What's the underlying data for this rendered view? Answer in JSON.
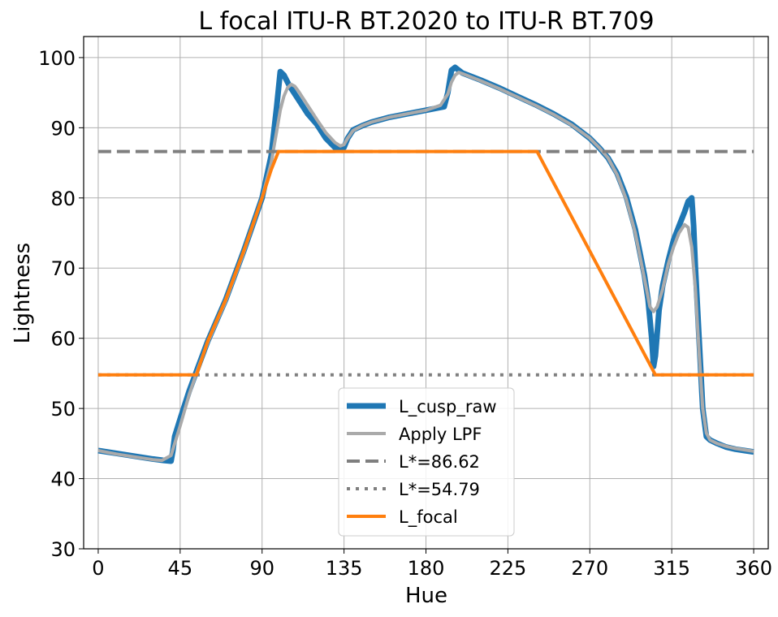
{
  "chart_data": {
    "type": "line",
    "title": "L focal ITU-R BT.2020 to ITU-R BT.709",
    "xlabel": "Hue",
    "ylabel": "Lightness",
    "xlim": [
      -8,
      368
    ],
    "ylim": [
      30,
      103
    ],
    "xticks": [
      0,
      45,
      90,
      135,
      180,
      225,
      270,
      315,
      360
    ],
    "yticks": [
      30,
      40,
      50,
      60,
      70,
      80,
      90,
      100
    ],
    "grid": true,
    "legend_position": "bottom-center",
    "series": [
      {
        "name": "L_cusp_raw",
        "color": "#1f77b4",
        "style": "solid-thick",
        "x": [
          0,
          10,
          20,
          30,
          36,
          40,
          41,
          42,
          45,
          50,
          55,
          60,
          70,
          80,
          90,
          95,
          98,
          100,
          102,
          105,
          110,
          115,
          120,
          125,
          130,
          133,
          135,
          137,
          140,
          145,
          150,
          160,
          170,
          180,
          190,
          192,
          194,
          196,
          198,
          200,
          210,
          220,
          230,
          240,
          250,
          260,
          270,
          275,
          280,
          285,
          290,
          295,
          300,
          302,
          304,
          305,
          306,
          308,
          310,
          313,
          316,
          319,
          322,
          324,
          326,
          327,
          328,
          330,
          332,
          334,
          336,
          340,
          345,
          350,
          355,
          360
        ],
        "y": [
          44,
          43.6,
          43.2,
          42.8,
          42.6,
          42.5,
          44,
          46,
          48.5,
          52.5,
          56,
          59.5,
          65.5,
          72.5,
          80,
          86,
          93,
          98,
          97.5,
          96,
          94,
          92,
          90.5,
          88.5,
          87.2,
          86.9,
          87.2,
          88.5,
          89.7,
          90.3,
          90.8,
          91.5,
          92,
          92.5,
          93,
          95,
          98.2,
          98.6,
          98.2,
          97.8,
          96.8,
          95.7,
          94.5,
          93.3,
          92,
          90.5,
          88.5,
          87.2,
          85.7,
          83.5,
          80.2,
          75.5,
          69,
          65.5,
          60,
          56,
          57.5,
          64,
          67.5,
          71,
          74,
          76,
          78,
          79.5,
          80,
          76,
          70,
          60,
          50,
          46,
          45.5,
          45,
          44.5,
          44.2,
          44,
          43.8
        ]
      },
      {
        "name": "Apply LPF",
        "color": "#aaaaaa",
        "style": "solid",
        "x": [
          0,
          10,
          20,
          30,
          35,
          40,
          45,
          50,
          55,
          60,
          70,
          80,
          90,
          95,
          98,
          100,
          102,
          104,
          106,
          108,
          110,
          115,
          120,
          125,
          130,
          133,
          135,
          137,
          140,
          145,
          150,
          160,
          170,
          180,
          188,
          192,
          194,
          196,
          198,
          200,
          210,
          220,
          230,
          240,
          250,
          260,
          270,
          275,
          280,
          285,
          290,
          295,
          300,
          303,
          305,
          307,
          310,
          313,
          316,
          319,
          322,
          324,
          326,
          328,
          330,
          332,
          334,
          336,
          340,
          345,
          350,
          355,
          360
        ],
        "y": [
          44,
          43.5,
          43.1,
          42.7,
          42.6,
          43.3,
          47.5,
          52,
          55.8,
          59.3,
          65.3,
          72.3,
          80,
          85,
          89.5,
          92.5,
          94.5,
          95.7,
          96.2,
          95.9,
          95.2,
          93.2,
          91.2,
          89.3,
          87.9,
          87.4,
          87.6,
          88.5,
          89.6,
          90.3,
          90.8,
          91.5,
          92,
          92.5,
          93.2,
          94.8,
          96.5,
          97.5,
          97.9,
          97.7,
          96.7,
          95.6,
          94.4,
          93.2,
          91.9,
          90.4,
          88.5,
          87.2,
          85.7,
          83.3,
          79.8,
          75,
          68.5,
          64.5,
          63.8,
          64.5,
          67,
          70.5,
          73,
          75,
          76.2,
          75.8,
          73,
          67,
          58,
          50,
          46.5,
          45.5,
          45,
          44.6,
          44.3,
          44.1,
          43.9
        ]
      },
      {
        "name": "L*=86.62",
        "color": "#7f7f7f",
        "style": "dashed",
        "x": [
          0,
          360
        ],
        "y": [
          86.62,
          86.62
        ]
      },
      {
        "name": "L*=54.79",
        "color": "#7f7f7f",
        "style": "dotted",
        "x": [
          0,
          360
        ],
        "y": [
          54.79,
          54.79
        ]
      },
      {
        "name": "L_focal",
        "color": "#ff7f0e",
        "style": "solid",
        "x": [
          0,
          54,
          60,
          70,
          80,
          90,
          95,
          99,
          241,
          306,
          360
        ],
        "y": [
          54.79,
          54.79,
          59.5,
          65.5,
          72.5,
          80,
          84,
          86.62,
          86.62,
          54.79,
          54.79
        ]
      }
    ]
  }
}
